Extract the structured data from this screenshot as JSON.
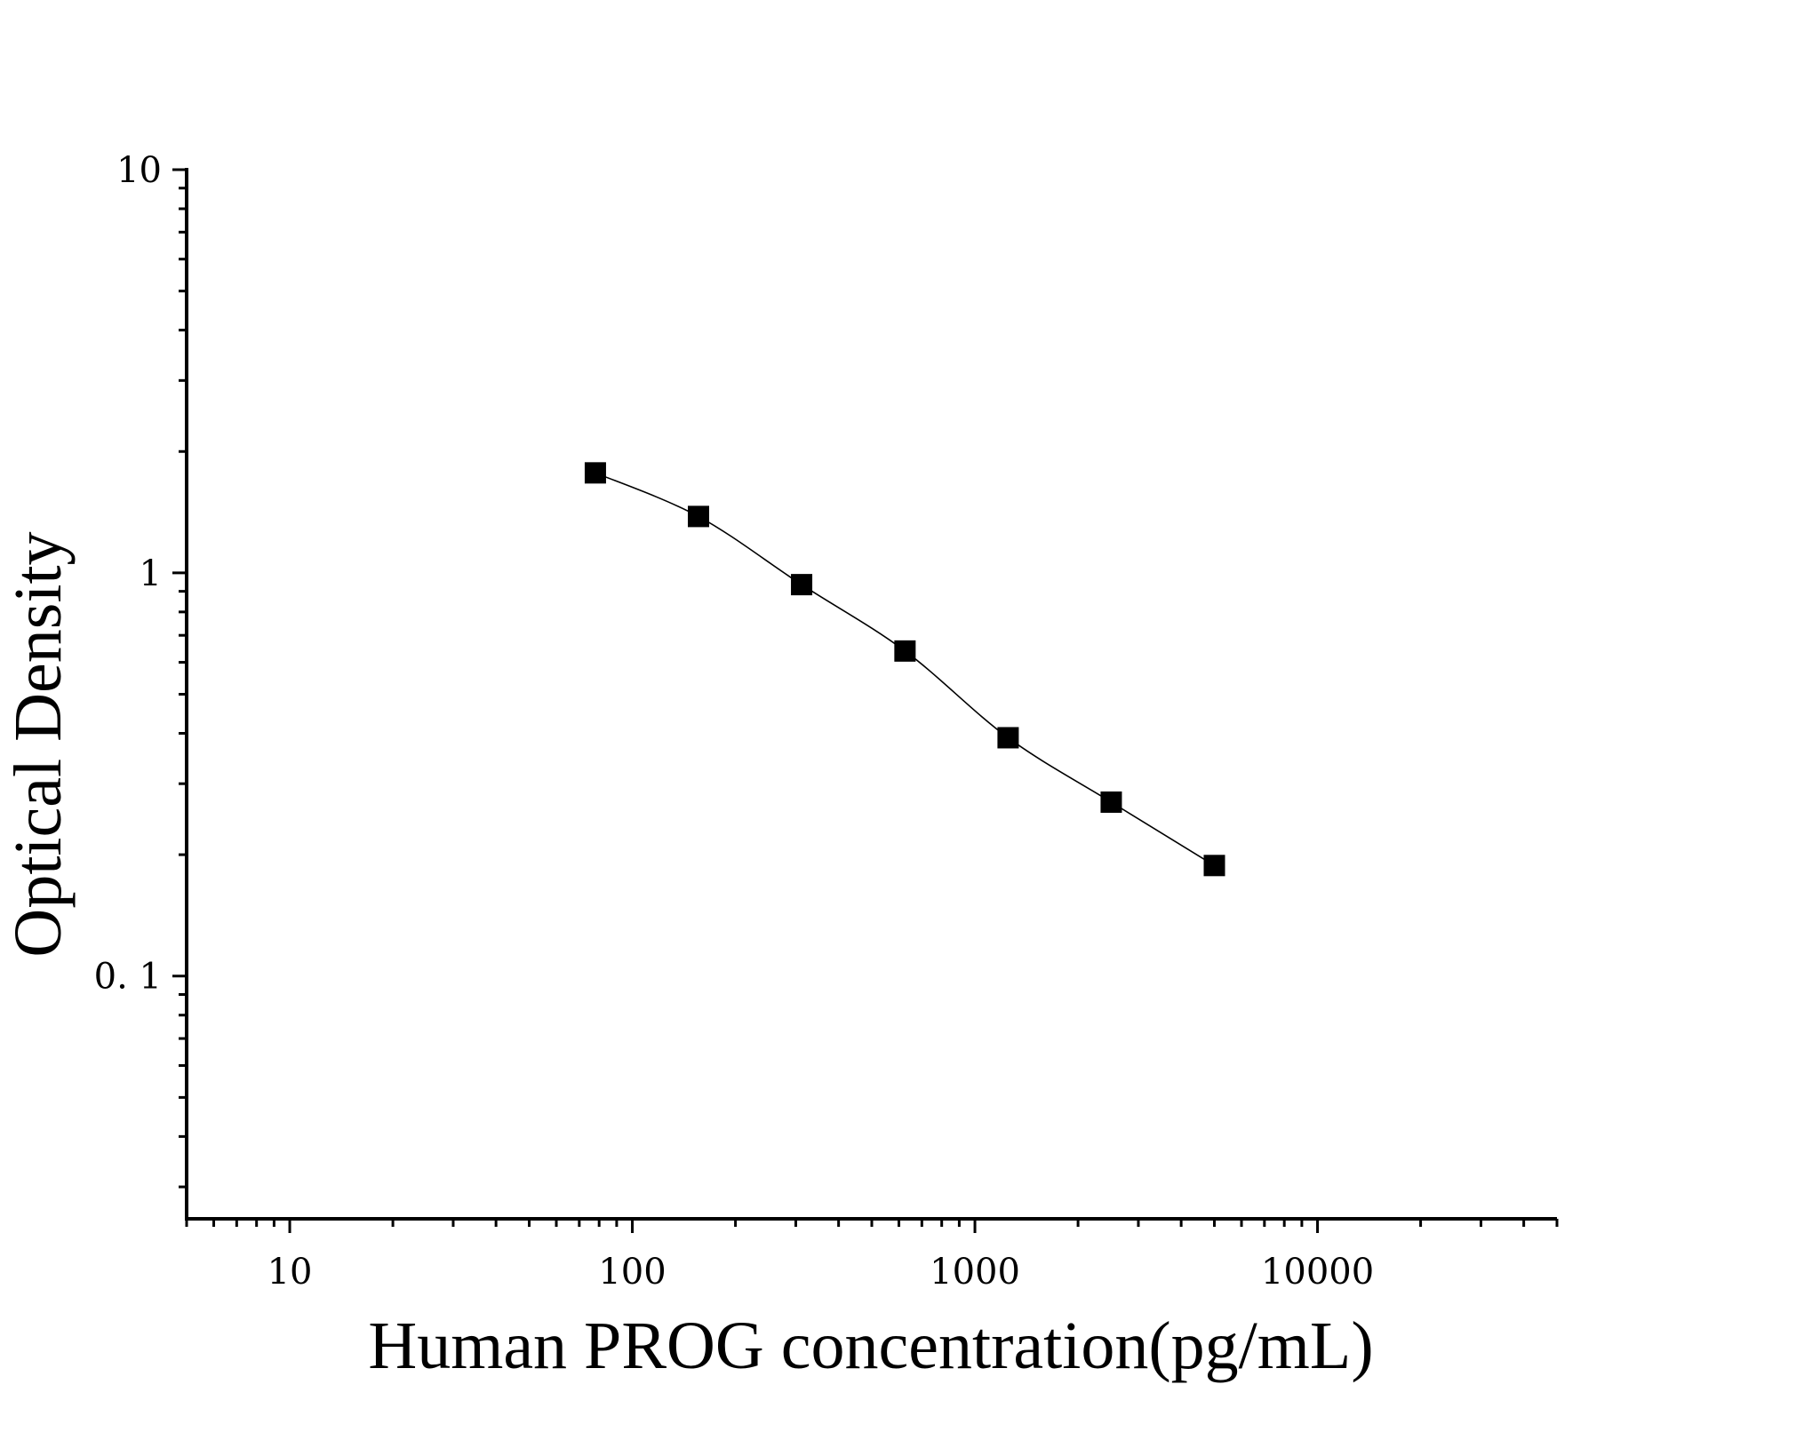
{
  "chart_data": {
    "type": "scatter",
    "title": "",
    "xlabel": "Human PROG concentration(pg/mL)",
    "ylabel": "Optical Density",
    "xscale": "log",
    "yscale": "log",
    "xlim": [
      5,
      50000
    ],
    "ylim": [
      0.025,
      10
    ],
    "x_ticks": [
      {
        "value": 10,
        "label": "10"
      },
      {
        "value": 100,
        "label": "100"
      },
      {
        "value": 1000,
        "label": "1000"
      },
      {
        "value": 10000,
        "label": "10000"
      }
    ],
    "y_ticks": [
      {
        "value": 0.1,
        "label": "0. 1"
      },
      {
        "value": 1,
        "label": "1"
      },
      {
        "value": 10,
        "label": "10"
      }
    ],
    "grid": false,
    "legend": "none",
    "series": [
      {
        "marker": "square",
        "color": "#000000",
        "x": [
          78,
          156,
          312,
          625,
          1250,
          2500,
          5000
        ],
        "y": [
          1.77,
          1.38,
          0.935,
          0.64,
          0.39,
          0.27,
          0.188
        ],
        "fit": "four-parameter logistic curve"
      }
    ]
  }
}
